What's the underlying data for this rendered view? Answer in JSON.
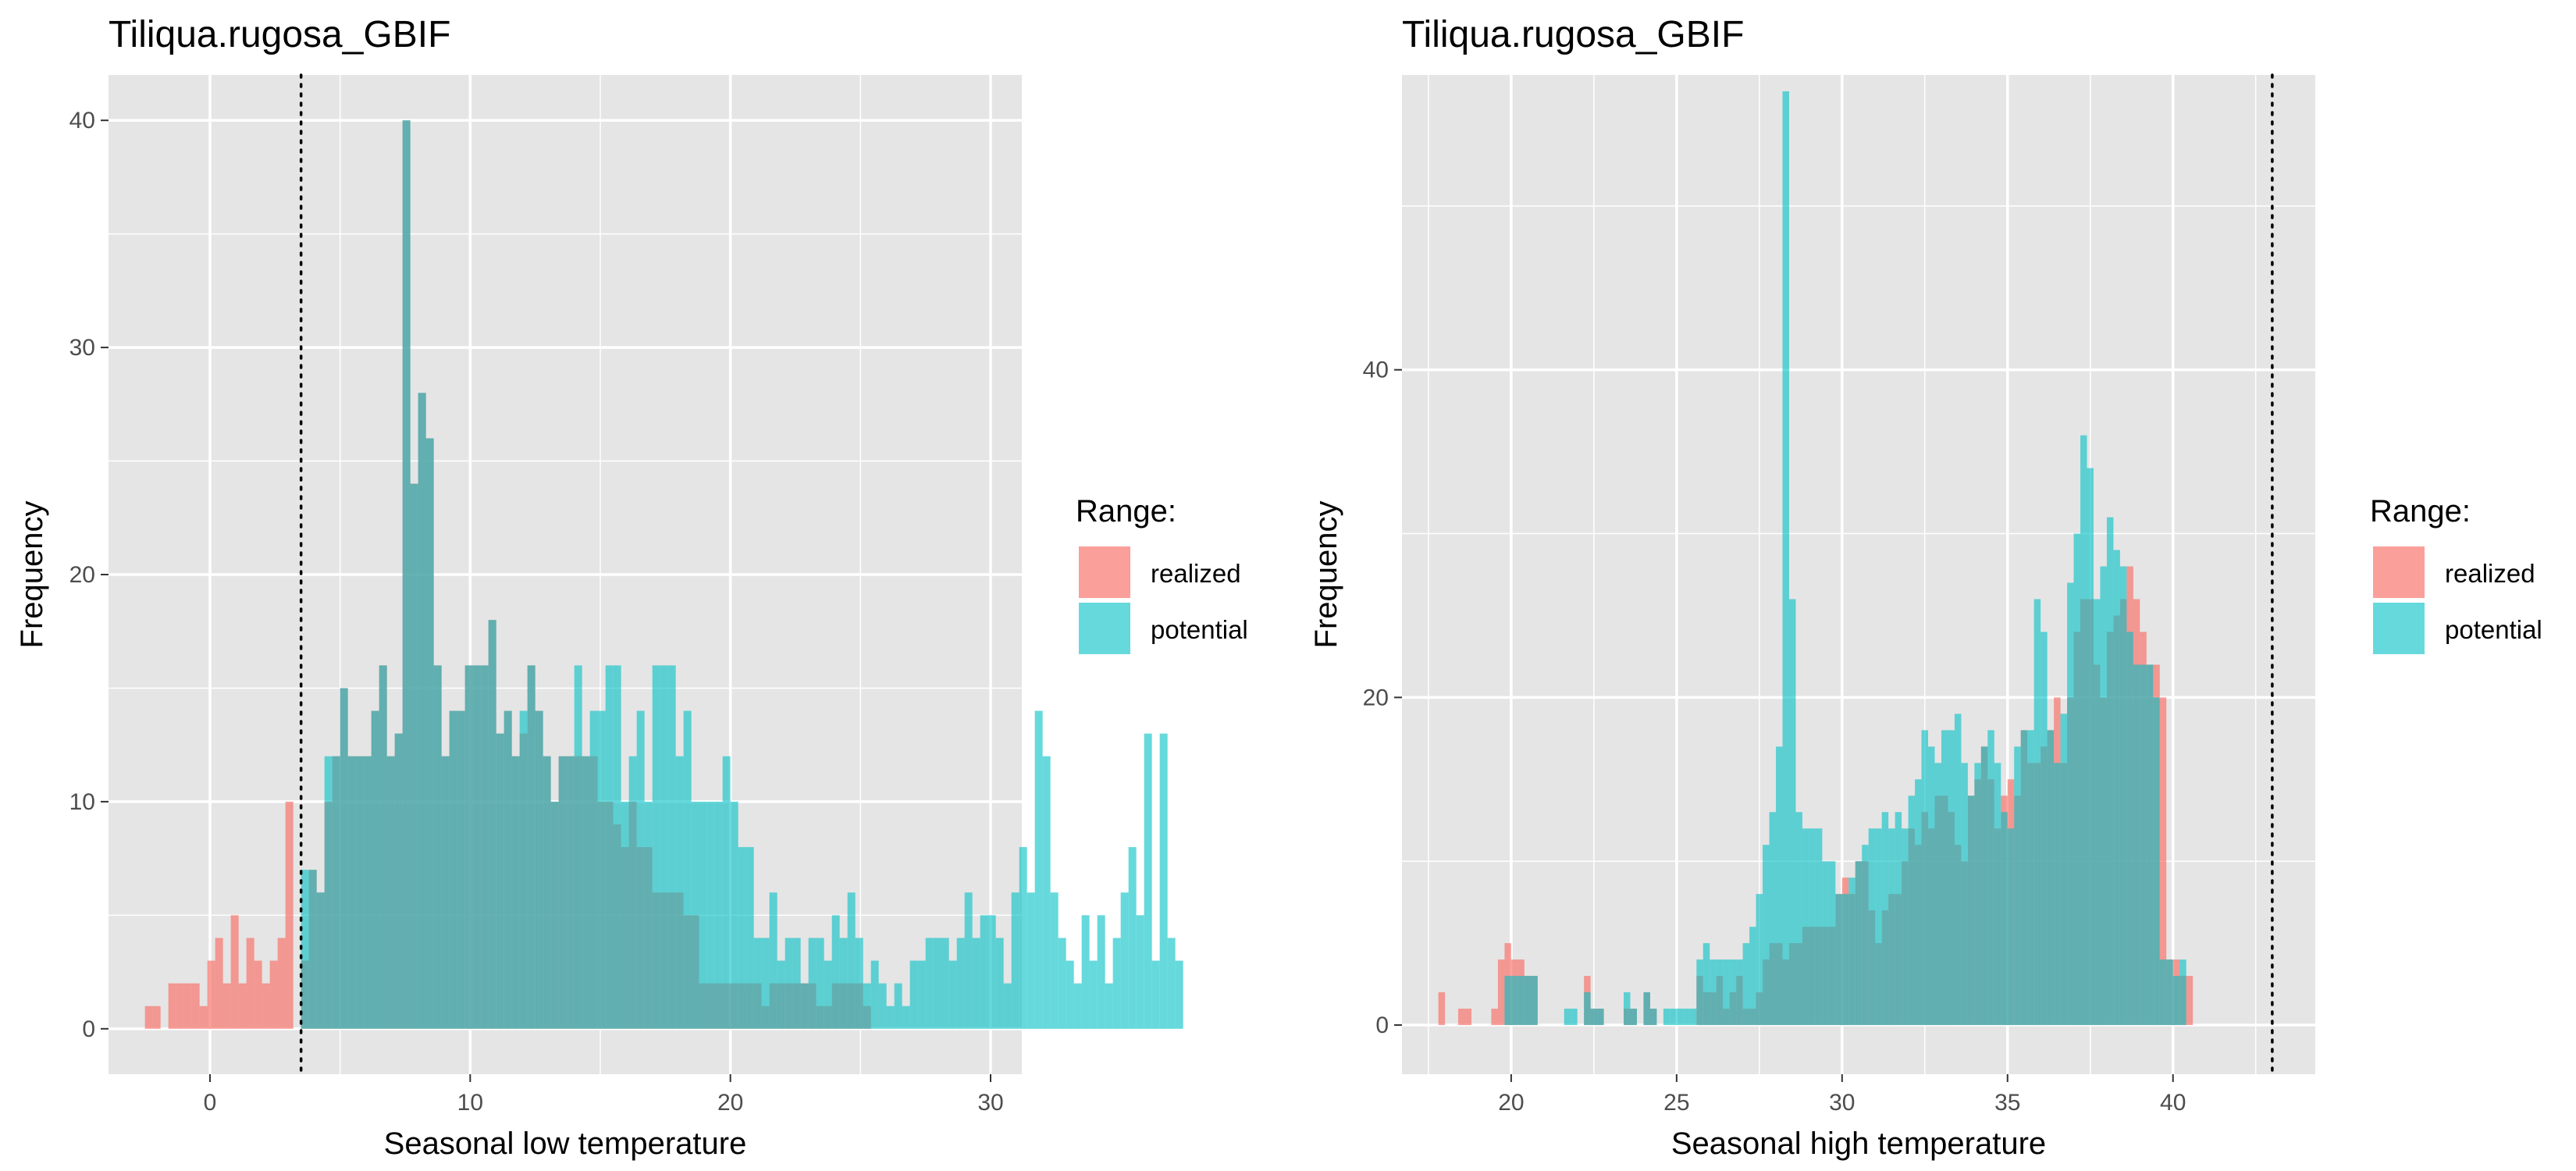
{
  "colors": {
    "panel_background": "#e5e5e5",
    "gridline": "#ffffff",
    "realized": "#f8766d",
    "potential": "#00bfc4",
    "tick_text": "#4d4d4d"
  },
  "legend": {
    "title": "Range:",
    "items": [
      "realized",
      "potential"
    ]
  },
  "chart_data": [
    {
      "type": "bar",
      "title": "Tiliqua.rugosa_GBIF",
      "xlabel": "Seasonal low temperature",
      "ylabel": "Frequency",
      "xlim": [
        -3.9,
        31.2
      ],
      "ylim": [
        -2,
        42
      ],
      "x_ticks": [
        0,
        10,
        20,
        30
      ],
      "y_ticks": [
        0,
        10,
        20,
        30,
        40
      ],
      "bin_start": -2.5,
      "bin_width": 0.3,
      "threshold_line_x": 3.5,
      "series": [
        {
          "name": "realized",
          "values": [
            1,
            1,
            0,
            2,
            2,
            2,
            2,
            1,
            3,
            4,
            2,
            5,
            2,
            4,
            3,
            2,
            3,
            4,
            10,
            0,
            3,
            7,
            6,
            10,
            12,
            15,
            12,
            12,
            12,
            14,
            16,
            12,
            13,
            40,
            24,
            28,
            26,
            16,
            12,
            14,
            14,
            16,
            16,
            16,
            18,
            13,
            14,
            12,
            13,
            16,
            14,
            12,
            10,
            12,
            12,
            12,
            12,
            12,
            10,
            10,
            9,
            8,
            10,
            8,
            8,
            6,
            6,
            6,
            6,
            5,
            5,
            2,
            2,
            2,
            2,
            2,
            2,
            2,
            2,
            1,
            2,
            2,
            2,
            2,
            2,
            2,
            1,
            1,
            2,
            2,
            2,
            2,
            1,
            0,
            0,
            0,
            0,
            0,
            0,
            0,
            0,
            0,
            0,
            0,
            0,
            0,
            0,
            0,
            0,
            0,
            0,
            0,
            0,
            0,
            0,
            0,
            0,
            0,
            0
          ]
        },
        {
          "name": "potential",
          "values": [
            0,
            0,
            0,
            0,
            0,
            0,
            0,
            0,
            0,
            0,
            0,
            0,
            0,
            0,
            0,
            0,
            0,
            0,
            0,
            0,
            7,
            7,
            6,
            12,
            12,
            15,
            12,
            12,
            12,
            14,
            16,
            12,
            13,
            40,
            24,
            28,
            26,
            16,
            12,
            14,
            14,
            16,
            16,
            16,
            18,
            13,
            14,
            12,
            14,
            16,
            14,
            12,
            10,
            12,
            12,
            16,
            12,
            14,
            14,
            16,
            16,
            10,
            12,
            14,
            10,
            16,
            16,
            16,
            12,
            14,
            10,
            10,
            10,
            10,
            12,
            10,
            8,
            8,
            4,
            4,
            6,
            3,
            4,
            4,
            2,
            4,
            4,
            3,
            5,
            4,
            6,
            4,
            2,
            3,
            2,
            1,
            2,
            1,
            3,
            3,
            4,
            4,
            4,
            3,
            4,
            6,
            4,
            5,
            5,
            4,
            2,
            6,
            8,
            6,
            14,
            12,
            6,
            4,
            3,
            2,
            5,
            3,
            5,
            2,
            4,
            6,
            8,
            5,
            13,
            3,
            13,
            4,
            3
          ]
        }
      ]
    },
    {
      "type": "bar",
      "title": "Tiliqua.rugosa_GBIF",
      "xlabel": "Seasonal high temperature",
      "ylabel": "Frequency",
      "xlim": [
        16.7,
        44.3
      ],
      "ylim": [
        -3,
        58
      ],
      "x_ticks": [
        20,
        25,
        30,
        35,
        40
      ],
      "y_ticks": [
        0,
        20,
        40
      ],
      "bin_start": 17.8,
      "bin_width": 0.2,
      "threshold_line_x": 43.0,
      "series": [
        {
          "name": "realized",
          "values": [
            2,
            0,
            0,
            1,
            1,
            0,
            0,
            0,
            1,
            4,
            5,
            4,
            4,
            3,
            3,
            0,
            0,
            0,
            0,
            0,
            0,
            0,
            3,
            1,
            1,
            0,
            0,
            0,
            1,
            1,
            0,
            2,
            1,
            0,
            0,
            0,
            0,
            0,
            0,
            3,
            2,
            2,
            3,
            1,
            2,
            3,
            1,
            1,
            2,
            4,
            5,
            5,
            4,
            5,
            5,
            6,
            6,
            6,
            6,
            6,
            8,
            9,
            8,
            10,
            10,
            7,
            5,
            7,
            8,
            8,
            10,
            12,
            11,
            13,
            12,
            14,
            14,
            13,
            11,
            10,
            14,
            15,
            17,
            15,
            12,
            14,
            15,
            14,
            18,
            16,
            16,
            17,
            18,
            20,
            16,
            20,
            24,
            26,
            26,
            22,
            20,
            24,
            25,
            26,
            28,
            26,
            24,
            22,
            22,
            20,
            4,
            4,
            3,
            3
          ]
        },
        {
          "name": "potential",
          "values": [
            0,
            0,
            0,
            0,
            0,
            0,
            0,
            0,
            0,
            0,
            3,
            3,
            3,
            3,
            3,
            0,
            0,
            0,
            0,
            1,
            1,
            0,
            2,
            1,
            1,
            0,
            0,
            0,
            2,
            1,
            0,
            2,
            1,
            0,
            1,
            1,
            1,
            1,
            1,
            4,
            5,
            4,
            4,
            4,
            4,
            4,
            5,
            6,
            8,
            11,
            13,
            17,
            57,
            26,
            13,
            12,
            12,
            12,
            10,
            10,
            8,
            8,
            9,
            10,
            11,
            12,
            12,
            13,
            12,
            13,
            12,
            14,
            15,
            18,
            17,
            16,
            18,
            18,
            19,
            16,
            14,
            16,
            17,
            18,
            16,
            13,
            12,
            17,
            18,
            18,
            26,
            24,
            18,
            16,
            19,
            27,
            30,
            36,
            34,
            26,
            28,
            31,
            29,
            28,
            24,
            22,
            22,
            22,
            20,
            4,
            4,
            3,
            4
          ]
        }
      ]
    }
  ]
}
